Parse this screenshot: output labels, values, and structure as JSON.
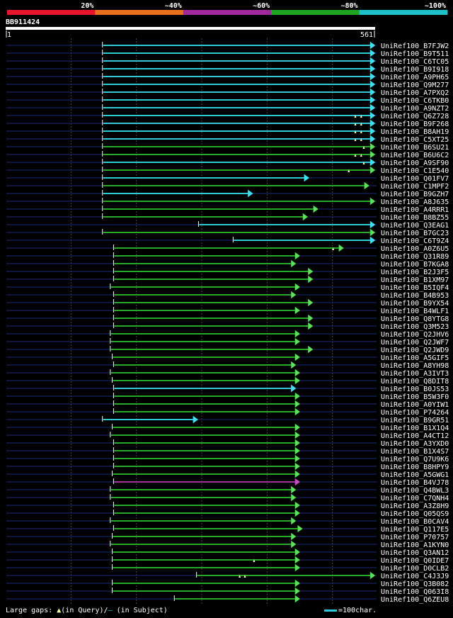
{
  "scale": {
    "labels": [
      "20%",
      "~40%",
      "~60%",
      "~80%",
      "~100%"
    ],
    "colors": [
      "#e8142c",
      "#e8701e",
      "#a02a9c",
      "#1ea41e",
      "#1ec0c8"
    ]
  },
  "query": {
    "name": "BB911424",
    "start": "1",
    "end": "561",
    "length": 561
  },
  "legend": {
    "gaps_text": "Large gaps: ",
    "in_query": "(in Query)/",
    "slash": "–",
    "in_subject": " (in Subject)",
    "char_text": "=100char."
  },
  "hits": [
    {
      "id": "UniRef100_B7FJW2",
      "start": 148,
      "end": 561,
      "color": "cyan",
      "marks": []
    },
    {
      "id": "UniRef100_B9T511",
      "start": 148,
      "end": 561,
      "color": "cyan",
      "marks": []
    },
    {
      "id": "UniRef100_C6TC05",
      "start": 148,
      "end": 561,
      "color": "cyan",
      "marks": []
    },
    {
      "id": "UniRef100_B9I918",
      "start": 148,
      "end": 561,
      "color": "cyan",
      "marks": []
    },
    {
      "id": "UniRef100_A9PH65",
      "start": 148,
      "end": 561,
      "color": "cyan",
      "marks": []
    },
    {
      "id": "UniRef100_Q9M277",
      "start": 148,
      "end": 561,
      "color": "cyan",
      "marks": []
    },
    {
      "id": "UniRef100_A7PXQ2",
      "start": 148,
      "end": 561,
      "color": "cyan",
      "marks": []
    },
    {
      "id": "UniRef100_C6TKB0",
      "start": 148,
      "end": 561,
      "color": "cyan",
      "marks": []
    },
    {
      "id": "UniRef100_A9NZT2",
      "start": 148,
      "end": 561,
      "color": "cyan",
      "marks": []
    },
    {
      "id": "UniRef100_Q6Z728",
      "start": 148,
      "end": 561,
      "color": "cyan",
      "marks": [
        535,
        544
      ]
    },
    {
      "id": "UniRef100_B9F268",
      "start": 148,
      "end": 561,
      "color": "cyan",
      "marks": [
        535,
        544
      ]
    },
    {
      "id": "UniRef100_B8AH19",
      "start": 148,
      "end": 561,
      "color": "cyan",
      "marks": [
        535,
        544
      ]
    },
    {
      "id": "UniRef100_C5XT25",
      "start": 148,
      "end": 561,
      "color": "cyan",
      "marks": [
        535,
        544
      ]
    },
    {
      "id": "UniRef100_B6SU21",
      "start": 148,
      "end": 561,
      "color": "green",
      "marks": [
        548
      ]
    },
    {
      "id": "UniRef100_B6U6C2",
      "start": 148,
      "end": 561,
      "color": "green",
      "marks": [
        535,
        544
      ]
    },
    {
      "id": "UniRef100_A9SF90",
      "start": 148,
      "end": 561,
      "color": "cyan",
      "marks": [
        548
      ]
    },
    {
      "id": "UniRef100_C1E540",
      "start": 148,
      "end": 561,
      "color": "green",
      "marks": [
        525
      ]
    },
    {
      "id": "UniRef100_Q01FV7",
      "start": 148,
      "end": 460,
      "color": "cyan",
      "marks": []
    },
    {
      "id": "UniRef100_C1MPF2",
      "start": 148,
      "end": 552,
      "color": "green",
      "marks": []
    },
    {
      "id": "UniRef100_B9GZH7",
      "start": 148,
      "end": 374,
      "color": "cyan",
      "marks": []
    },
    {
      "id": "UniRef100_A8J635",
      "start": 148,
      "end": 561,
      "color": "green",
      "marks": []
    },
    {
      "id": "UniRef100_A4RRR1",
      "start": 148,
      "end": 474,
      "color": "green",
      "marks": []
    },
    {
      "id": "UniRef100_B8BZ55",
      "start": 148,
      "end": 458,
      "color": "green",
      "marks": []
    },
    {
      "id": "UniRef100_Q3EAG1",
      "start": 295,
      "end": 561,
      "color": "cyan",
      "marks": []
    },
    {
      "id": "UniRef100_B7GC23",
      "start": 148,
      "end": 561,
      "color": "green",
      "marks": []
    },
    {
      "id": "UniRef100_C6T9Z4",
      "start": 348,
      "end": 561,
      "color": "cyan",
      "marks": []
    },
    {
      "id": "UniRef100_A0Z6U5",
      "start": 165,
      "end": 513,
      "color": "green",
      "marks": [
        501
      ]
    },
    {
      "id": "UniRef100_Q31R89",
      "start": 165,
      "end": 446,
      "color": "green",
      "marks": []
    },
    {
      "id": "UniRef100_B7KGA8",
      "start": 165,
      "end": 440,
      "color": "green",
      "marks": []
    },
    {
      "id": "UniRef100_B2J3F5",
      "start": 165,
      "end": 466,
      "color": "green",
      "marks": []
    },
    {
      "id": "UniRef100_B1XM97",
      "start": 165,
      "end": 466,
      "color": "green",
      "marks": []
    },
    {
      "id": "UniRef100_B5IQF4",
      "start": 160,
      "end": 446,
      "color": "green",
      "marks": []
    },
    {
      "id": "UniRef100_B4B953",
      "start": 165,
      "end": 440,
      "color": "green",
      "marks": []
    },
    {
      "id": "UniRef100_B9YX54",
      "start": 165,
      "end": 466,
      "color": "green",
      "marks": []
    },
    {
      "id": "UniRef100_B4WLF1",
      "start": 165,
      "end": 446,
      "color": "green",
      "marks": []
    },
    {
      "id": "UniRef100_Q8YTG8",
      "start": 165,
      "end": 466,
      "color": "green",
      "marks": []
    },
    {
      "id": "UniRef100_Q3M523",
      "start": 165,
      "end": 466,
      "color": "green",
      "marks": []
    },
    {
      "id": "UniRef100_Q2JHV6",
      "start": 160,
      "end": 446,
      "color": "green",
      "marks": []
    },
    {
      "id": "UniRef100_Q2JWF7",
      "start": 160,
      "end": 446,
      "color": "green",
      "marks": []
    },
    {
      "id": "UniRef100_Q2JWD9",
      "start": 160,
      "end": 466,
      "color": "green",
      "marks": []
    },
    {
      "id": "UniRef100_A5GIF5",
      "start": 163,
      "end": 446,
      "color": "green",
      "marks": []
    },
    {
      "id": "UniRef100_A8YH98",
      "start": 165,
      "end": 440,
      "color": "green",
      "marks": []
    },
    {
      "id": "UniRef100_A3IVT3",
      "start": 160,
      "end": 446,
      "color": "green",
      "marks": []
    },
    {
      "id": "UniRef100_Q8DIT8",
      "start": 163,
      "end": 446,
      "color": "green",
      "marks": []
    },
    {
      "id": "UniRef100_B0JS53",
      "start": 165,
      "end": 440,
      "color": "cyan",
      "marks": []
    },
    {
      "id": "UniRef100_B5W3F0",
      "start": 165,
      "end": 446,
      "color": "green",
      "marks": []
    },
    {
      "id": "UniRef100_A0YIW1",
      "start": 165,
      "end": 446,
      "color": "green",
      "marks": []
    },
    {
      "id": "UniRef100_P74264",
      "start": 165,
      "end": 446,
      "color": "green",
      "marks": []
    },
    {
      "id": "UniRef100_B9GR51",
      "start": 148,
      "end": 290,
      "color": "cyan",
      "marks": []
    },
    {
      "id": "UniRef100_B1X1Q4",
      "start": 163,
      "end": 446,
      "color": "green",
      "marks": []
    },
    {
      "id": "UniRef100_A4CT12",
      "start": 160,
      "end": 446,
      "color": "green",
      "marks": []
    },
    {
      "id": "UniRef100_A3YXD0",
      "start": 165,
      "end": 446,
      "color": "green",
      "marks": []
    },
    {
      "id": "UniRef100_B1X4S7",
      "start": 165,
      "end": 446,
      "color": "green",
      "marks": []
    },
    {
      "id": "UniRef100_Q7U9K6",
      "start": 165,
      "end": 446,
      "color": "green",
      "marks": []
    },
    {
      "id": "UniRef100_B8HPY9",
      "start": 165,
      "end": 446,
      "color": "green",
      "marks": []
    },
    {
      "id": "UniRef100_A5GWG1",
      "start": 163,
      "end": 446,
      "color": "green",
      "marks": []
    },
    {
      "id": "UniRef100_B4VJ78",
      "start": 165,
      "end": 446,
      "color": "purple",
      "marks": []
    },
    {
      "id": "UniRef100_Q4BWL3",
      "start": 160,
      "end": 440,
      "color": "green",
      "marks": []
    },
    {
      "id": "UniRef100_C7QNH4",
      "start": 160,
      "end": 440,
      "color": "green",
      "marks": []
    },
    {
      "id": "UniRef100_A3Z8H9",
      "start": 165,
      "end": 446,
      "color": "green",
      "marks": []
    },
    {
      "id": "UniRef100_Q05QS9",
      "start": 165,
      "end": 446,
      "color": "green",
      "marks": []
    },
    {
      "id": "UniRef100_B0CAV4",
      "start": 160,
      "end": 440,
      "color": "green",
      "marks": []
    },
    {
      "id": "UniRef100_Q117E5",
      "start": 165,
      "end": 450,
      "color": "green",
      "marks": []
    },
    {
      "id": "UniRef100_P70757",
      "start": 163,
      "end": 440,
      "color": "green",
      "marks": []
    },
    {
      "id": "UniRef100_A1KYN0",
      "start": 160,
      "end": 440,
      "color": "green",
      "marks": []
    },
    {
      "id": "UniRef100_Q3AN12",
      "start": 163,
      "end": 446,
      "color": "green",
      "marks": []
    },
    {
      "id": "UniRef100_Q0IDE7",
      "start": 163,
      "end": 446,
      "color": "green",
      "marks": [
        380
      ]
    },
    {
      "id": "UniRef100_D0CLB2",
      "start": 163,
      "end": 446,
      "color": "green",
      "marks": []
    },
    {
      "id": "UniRef100_C4J3J9",
      "start": 292,
      "end": 561,
      "color": "green",
      "marks": [
        358,
        366
      ]
    },
    {
      "id": "UniRef100_Q3B082",
      "start": 163,
      "end": 446,
      "color": "green",
      "marks": []
    },
    {
      "id": "UniRef100_Q063I8",
      "start": 163,
      "end": 446,
      "color": "green",
      "marks": []
    },
    {
      "id": "UniRef100_Q6ZEU8",
      "start": 258,
      "end": 446,
      "color": "green",
      "marks": []
    }
  ]
}
